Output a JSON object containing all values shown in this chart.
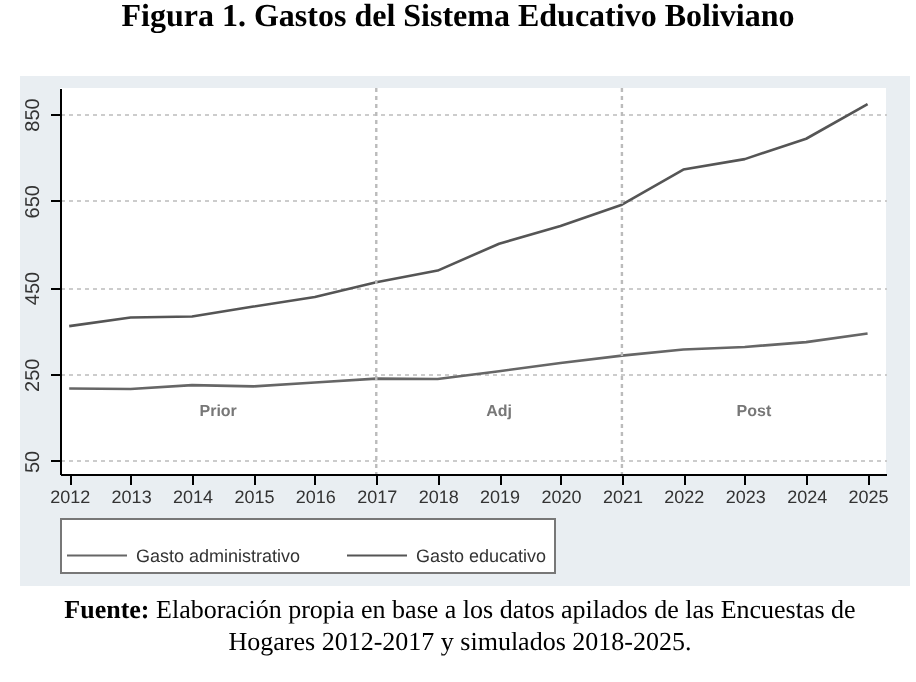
{
  "chart_data": {
    "type": "line",
    "title": "Figura 1. Gastos del Sistema Educativo Boliviano",
    "x": [
      2012,
      2013,
      2014,
      2015,
      2016,
      2017,
      2018,
      2019,
      2020,
      2021,
      2022,
      2023,
      2024,
      2025
    ],
    "series": [
      {
        "name": "Gasto administrativo",
        "color": "#666666",
        "values": [
          217,
          216,
          225,
          222,
          231,
          240,
          239,
          257,
          276,
          293,
          307,
          313,
          324,
          344
        ]
      },
      {
        "name": "Gasto educativo",
        "color": "#555555",
        "values": [
          361,
          381,
          383,
          406,
          428,
          462,
          489,
          551,
          592,
          641,
          722,
          746,
          793,
          873
        ]
      }
    ],
    "xlim": [
      2011.85,
      2025.3
    ],
    "xticks": [
      2012,
      2013,
      2014,
      2015,
      2016,
      2017,
      2018,
      2019,
      2020,
      2021,
      2022,
      2023,
      2024,
      2025
    ],
    "ylim": [
      20,
      910
    ],
    "yticks": [
      50,
      250,
      450,
      650,
      850
    ],
    "grid": "y",
    "legend": "bottom",
    "line_style": "solid",
    "ref_lines": [
      {
        "axis": "x",
        "value": 2017,
        "color": "#bbbbbb",
        "line_style": "dotted"
      },
      {
        "axis": "x",
        "value": 2021,
        "color": "#bbbbbb",
        "line_style": "dotted"
      }
    ],
    "annotations": [
      "Prior",
      "Adj",
      "Post",
      "Fuente: Elaboración propia en base a los datos apilados de las Encuestas de Hogares 2012-2017 y simulados 2018-2025."
    ]
  }
}
